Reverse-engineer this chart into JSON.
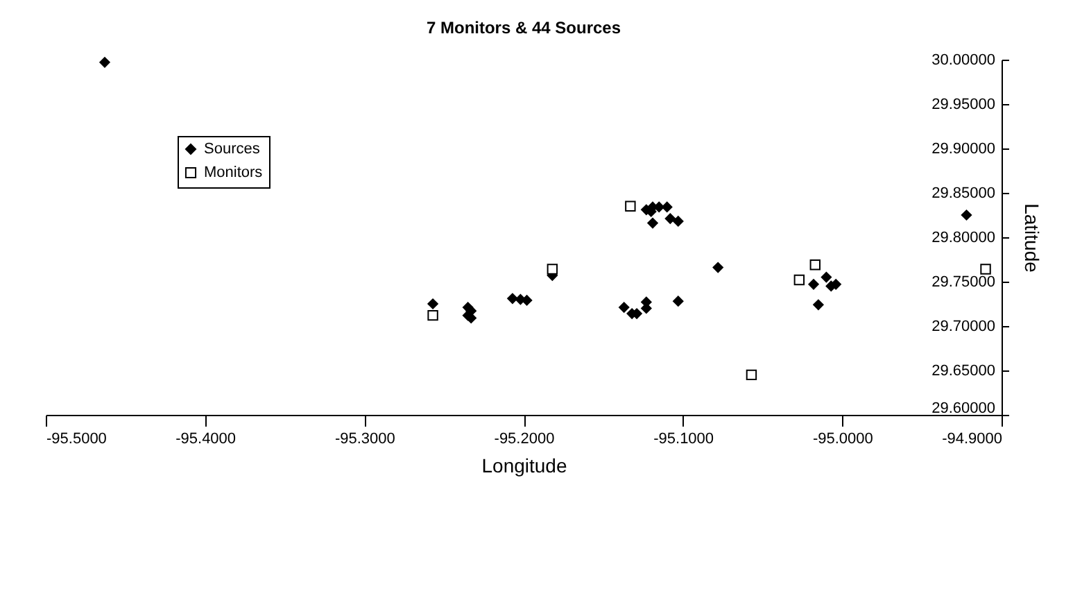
{
  "chart_data": {
    "type": "scatter",
    "title": "7 Monitors & 44 Sources",
    "xlabel": "Longitude",
    "ylabel": "Latitude",
    "xlim": [
      -95.5,
      -94.9
    ],
    "xticks": [
      {
        "value": -95.5,
        "label": "-95.5000"
      },
      {
        "value": -95.4,
        "label": "-95.4000"
      },
      {
        "value": -95.3,
        "label": "-95.3000"
      },
      {
        "value": -95.2,
        "label": "-95.2000"
      },
      {
        "value": -95.1,
        "label": "-95.1000"
      },
      {
        "value": -95.0,
        "label": "-95.0000"
      },
      {
        "value": -94.9,
        "label": "-94.9000"
      }
    ],
    "ylim": [
      29.6,
      30.0
    ],
    "yticks": [
      {
        "value": 29.6,
        "label": "29.60000"
      },
      {
        "value": 29.65,
        "label": "29.65000"
      },
      {
        "value": 29.7,
        "label": "29.70000"
      },
      {
        "value": 29.75,
        "label": "29.75000"
      },
      {
        "value": 29.8,
        "label": "29.80000"
      },
      {
        "value": 29.85,
        "label": "29.85000"
      },
      {
        "value": 29.9,
        "label": "29.90000"
      },
      {
        "value": 29.95,
        "label": "29.95000"
      },
      {
        "value": 30.0,
        "label": "30.00000"
      }
    ],
    "grid": false,
    "legend": "top left",
    "series": [
      {
        "name": "Sources",
        "color": "#000000",
        "marker": "diamond",
        "x": [
          -95.463,
          -95.257,
          -95.235,
          -95.233,
          -95.235,
          -95.233,
          -95.207,
          -95.202,
          -95.198,
          -95.182,
          -95.137,
          -95.132,
          -95.129,
          -95.123,
          -95.123,
          -95.103,
          -95.078,
          -95.123,
          -95.12,
          -95.119,
          -95.115,
          -95.11,
          -95.119,
          -95.103,
          -95.108,
          -94.922,
          -95.01,
          -95.018,
          -95.007,
          -95.004,
          -95.015
        ],
        "values": [
          29.997,
          29.725,
          29.721,
          29.717,
          29.712,
          29.709,
          29.731,
          29.73,
          29.729,
          29.757,
          29.721,
          29.714,
          29.714,
          29.727,
          29.72,
          29.728,
          29.766,
          29.831,
          29.829,
          29.834,
          29.834,
          29.834,
          29.816,
          29.818,
          29.821,
          29.825,
          29.755,
          29.747,
          29.745,
          29.747,
          29.724
        ]
      },
      {
        "name": "Monitors",
        "color": "#000000",
        "marker": "square",
        "x": [
          -95.257,
          -95.182,
          -95.133,
          -95.057,
          -95.027,
          -95.017,
          -94.91
        ],
        "values": [
          29.712,
          29.764,
          29.835,
          29.645,
          29.752,
          29.769,
          29.764
        ]
      }
    ]
  }
}
